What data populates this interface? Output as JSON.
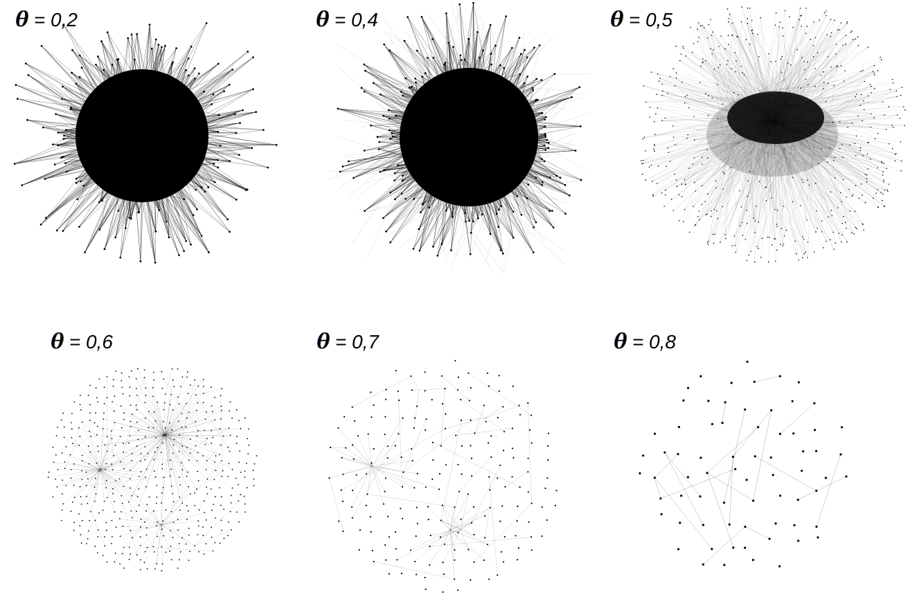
{
  "panels": [
    {
      "id": "p1",
      "symbol": "θ",
      "value_text": "= 0,2",
      "theta": 0.2
    },
    {
      "id": "p2",
      "symbol": "θ",
      "value_text": "= 0,4",
      "theta": 0.4
    },
    {
      "id": "p3",
      "symbol": "θ",
      "value_text": "= 0,5",
      "theta": 0.5
    },
    {
      "id": "p4",
      "symbol": "θ",
      "value_text": "= 0,6",
      "theta": 0.6
    },
    {
      "id": "p5",
      "symbol": "θ",
      "value_text": "= 0,7",
      "theta": 0.7
    },
    {
      "id": "p6",
      "symbol": "θ",
      "value_text": "= 0,8",
      "theta": 0.8
    }
  ],
  "colors": {
    "node": "#000000",
    "edge": "#000000",
    "background": "#ffffff"
  }
}
